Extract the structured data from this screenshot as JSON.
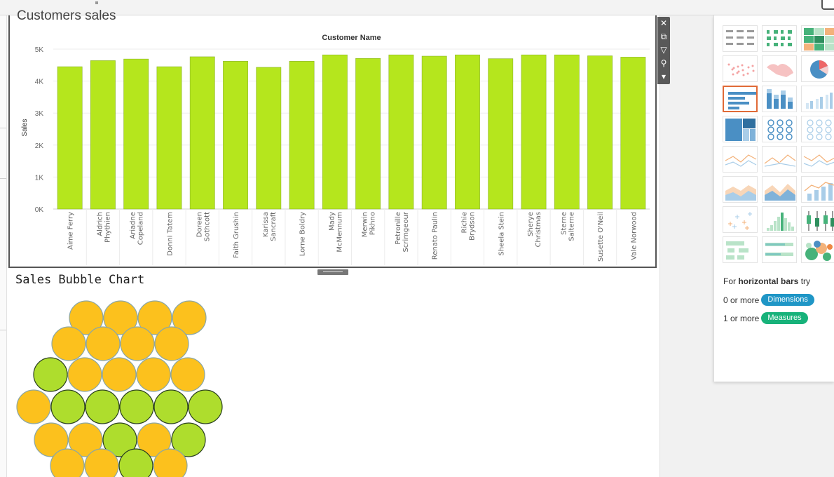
{
  "dashboard": {
    "sheet1_title": "Customers sales",
    "sheet2_title": "Sales Bubble Chart"
  },
  "chart_data": {
    "type": "bar",
    "title": "Customers sales",
    "column_header": "Customer Name",
    "ylabel": "Sales",
    "ylim": [
      0,
      5000
    ],
    "y_ticks": [
      "0K",
      "1K",
      "2K",
      "3K",
      "4K",
      "5K"
    ],
    "categories": [
      "Aime Ferry",
      "Aldrich Phythien",
      "Ariadne Copeland",
      "Donni Tatem",
      "Doreen Sothcott",
      "Faith Grushin",
      "Karissa Sancraft",
      "Lorne Boldry",
      "Mady McMennum",
      "Merwin Pikhno",
      "Petronille Scrimgeour",
      "Renato Paulin",
      "Richie Brydson",
      "Sheela Stein",
      "Sherye Christmas",
      "Sterne Salterne",
      "Susette O'Neil",
      "Vale Norwood"
    ],
    "category_lines": [
      [
        "Aime Ferry"
      ],
      [
        "Aldrich",
        "Phythien"
      ],
      [
        "Ariadne",
        "Copeland"
      ],
      [
        "Donni Tatem"
      ],
      [
        "Doreen",
        "Sothcott"
      ],
      [
        "Faith Grushin"
      ],
      [
        "Karissa",
        "Sancraft"
      ],
      [
        "Lorne Boldry"
      ],
      [
        "Mady",
        "McMennum"
      ],
      [
        "Merwin",
        "Pikhno"
      ],
      [
        "Petronille",
        "Scrimgeour"
      ],
      [
        "Renato Paulin"
      ],
      [
        "Richie",
        "Brydson"
      ],
      [
        "Sheela Stein"
      ],
      [
        "Sherye",
        "Christmas"
      ],
      [
        "Sterne",
        "Salterne"
      ],
      [
        "Susette O'Neil"
      ],
      [
        "Vale Norwood"
      ]
    ],
    "values": [
      4450,
      4640,
      4690,
      4450,
      4760,
      4620,
      4430,
      4620,
      4820,
      4710,
      4820,
      4780,
      4820,
      4700,
      4820,
      4820,
      4790,
      4750
    ],
    "bar_color": "#b5e61d",
    "grid": true
  },
  "bubble_chart": {
    "colors": {
      "orange": "#fcc11d",
      "green": "#aedd2d"
    },
    "rows": [
      [
        "orange",
        "orange",
        "orange",
        "orange"
      ],
      [
        "orange",
        "orange",
        "orange",
        "orange"
      ],
      [
        "green",
        "orange",
        "orange",
        "orange",
        "orange"
      ],
      [
        "orange",
        "green",
        "green",
        "green",
        "green",
        "green"
      ],
      [
        "orange",
        "orange",
        "green",
        "orange",
        "green"
      ],
      [
        "orange",
        "orange",
        "green",
        "orange"
      ]
    ]
  },
  "zone_toolbar": [
    {
      "name": "close-icon",
      "glyph": "✕"
    },
    {
      "name": "open-external-icon",
      "glyph": "⧉"
    },
    {
      "name": "filter-icon",
      "glyph": "▽"
    },
    {
      "name": "pin-icon",
      "glyph": "⚲"
    },
    {
      "name": "more-options-icon",
      "glyph": "▾"
    }
  ],
  "show_me": {
    "thumbnails": [
      {
        "name": "text-table-thumb"
      },
      {
        "name": "heat-map-thumb"
      },
      {
        "name": "highlight-table-thumb"
      },
      {
        "name": "symbol-map-thumb"
      },
      {
        "name": "filled-map-thumb"
      },
      {
        "name": "pie-chart-thumb"
      },
      {
        "name": "horizontal-bars-thumb",
        "selected": true
      },
      {
        "name": "stacked-bars-thumb"
      },
      {
        "name": "side-by-side-bars-thumb"
      },
      {
        "name": "treemap-thumb"
      },
      {
        "name": "circle-views-thumb"
      },
      {
        "name": "side-by-side-circles-thumb"
      },
      {
        "name": "continuous-lines-thumb"
      },
      {
        "name": "discrete-lines-thumb"
      },
      {
        "name": "dual-lines-thumb"
      },
      {
        "name": "area-continuous-thumb"
      },
      {
        "name": "area-discrete-thumb"
      },
      {
        "name": "dual-combination-thumb"
      },
      {
        "name": "scatter-plot-thumb"
      },
      {
        "name": "histogram-thumb"
      },
      {
        "name": "box-whisker-thumb"
      },
      {
        "name": "gantt-chart-thumb"
      },
      {
        "name": "bullet-graph-thumb"
      },
      {
        "name": "packed-bubbles-thumb"
      }
    ],
    "hint_prefix": "For",
    "hint_bold": "horizontal bars",
    "hint_suffix": "try",
    "dim_prefix": "0 or more",
    "dim_label": "Dimensions",
    "mea_prefix": "1 or more",
    "mea_label": "Measures"
  }
}
